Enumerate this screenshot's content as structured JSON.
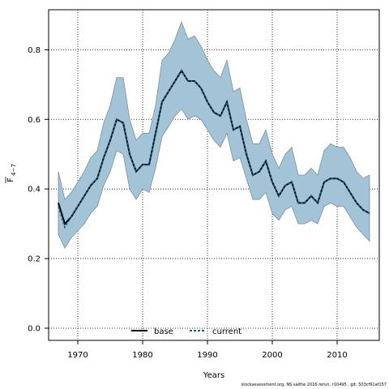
{
  "chart_data": {
    "type": "line",
    "xlabel": "Years",
    "ylabel": "F",
    "ylabel_subscript": "4−7",
    "xlim": [
      1965.5,
      2016.5
    ],
    "ylim": [
      -0.035,
      0.915
    ],
    "x_ticks": [
      1970,
      1980,
      1990,
      2000,
      2010
    ],
    "x_tick_labels": [
      "1970",
      "1980",
      "1990",
      "2000",
      "2010"
    ],
    "y_ticks": [
      0.0,
      0.2,
      0.4,
      0.6,
      0.8
    ],
    "y_tick_labels": [
      "0.0",
      "0.2",
      "0.4",
      "0.6",
      "0.8"
    ],
    "grid": true,
    "legend_position": "bottom-center",
    "colors": {
      "band": "#a3c4d6",
      "band_edge": "#7a8f9c",
      "current": "#1a5a8a",
      "base": "#000000"
    },
    "x": [
      1967,
      1968,
      1969,
      1970,
      1971,
      1972,
      1973,
      1974,
      1975,
      1976,
      1977,
      1978,
      1979,
      1980,
      1981,
      1982,
      1983,
      1984,
      1985,
      1986,
      1987,
      1988,
      1989,
      1990,
      1991,
      1992,
      1993,
      1994,
      1995,
      1996,
      1997,
      1998,
      1999,
      2000,
      2001,
      2002,
      2003,
      2004,
      2005,
      2006,
      2007,
      2008,
      2009,
      2010,
      2011,
      2012,
      2013,
      2014,
      2015
    ],
    "series": [
      {
        "name": "base",
        "style": "solid",
        "values": [
          0.36,
          0.3,
          0.32,
          0.35,
          0.38,
          0.41,
          0.43,
          0.49,
          0.54,
          0.6,
          0.59,
          0.5,
          0.45,
          0.47,
          0.47,
          0.56,
          0.65,
          0.68,
          0.71,
          0.74,
          0.71,
          0.71,
          0.69,
          0.65,
          0.62,
          0.61,
          0.65,
          0.57,
          0.58,
          0.5,
          0.44,
          0.45,
          0.48,
          0.42,
          0.38,
          0.41,
          0.42,
          0.36,
          0.36,
          0.38,
          0.36,
          0.42,
          0.43,
          0.43,
          0.42,
          0.39,
          0.36,
          0.34,
          0.33
        ]
      },
      {
        "name": "current",
        "style": "dashed",
        "values": [
          0.35,
          0.29,
          0.32,
          0.35,
          0.38,
          0.41,
          0.43,
          0.49,
          0.54,
          0.6,
          0.59,
          0.5,
          0.45,
          0.47,
          0.47,
          0.56,
          0.65,
          0.68,
          0.71,
          0.74,
          0.71,
          0.71,
          0.69,
          0.65,
          0.62,
          0.61,
          0.65,
          0.57,
          0.58,
          0.5,
          0.44,
          0.45,
          0.48,
          0.42,
          0.38,
          0.41,
          0.42,
          0.36,
          0.36,
          0.38,
          0.36,
          0.42,
          0.43,
          0.43,
          0.42,
          0.39,
          0.36,
          0.34,
          0.33
        ]
      }
    ],
    "band": {
      "lower": [
        0.27,
        0.23,
        0.26,
        0.28,
        0.3,
        0.33,
        0.35,
        0.41,
        0.45,
        0.51,
        0.5,
        0.4,
        0.37,
        0.4,
        0.39,
        0.46,
        0.55,
        0.58,
        0.61,
        0.63,
        0.6,
        0.61,
        0.6,
        0.57,
        0.54,
        0.52,
        0.56,
        0.48,
        0.49,
        0.43,
        0.37,
        0.37,
        0.39,
        0.33,
        0.31,
        0.34,
        0.35,
        0.3,
        0.3,
        0.31,
        0.3,
        0.35,
        0.36,
        0.35,
        0.35,
        0.32,
        0.29,
        0.27,
        0.25
      ],
      "upper": [
        0.45,
        0.37,
        0.39,
        0.42,
        0.45,
        0.49,
        0.51,
        0.59,
        0.64,
        0.72,
        0.72,
        0.6,
        0.54,
        0.56,
        0.56,
        0.64,
        0.77,
        0.79,
        0.83,
        0.88,
        0.83,
        0.84,
        0.81,
        0.77,
        0.74,
        0.72,
        0.77,
        0.68,
        0.69,
        0.6,
        0.53,
        0.53,
        0.57,
        0.5,
        0.46,
        0.5,
        0.52,
        0.44,
        0.44,
        0.46,
        0.44,
        0.51,
        0.53,
        0.52,
        0.52,
        0.49,
        0.45,
        0.43,
        0.44
      ]
    }
  },
  "legend": {
    "items": [
      {
        "label": "base"
      },
      {
        "label": "current"
      }
    ]
  },
  "footer": {
    "text": "stockassessment.org, NS saithe 2016 rerun, r10495 , git: 503cf91af157"
  }
}
